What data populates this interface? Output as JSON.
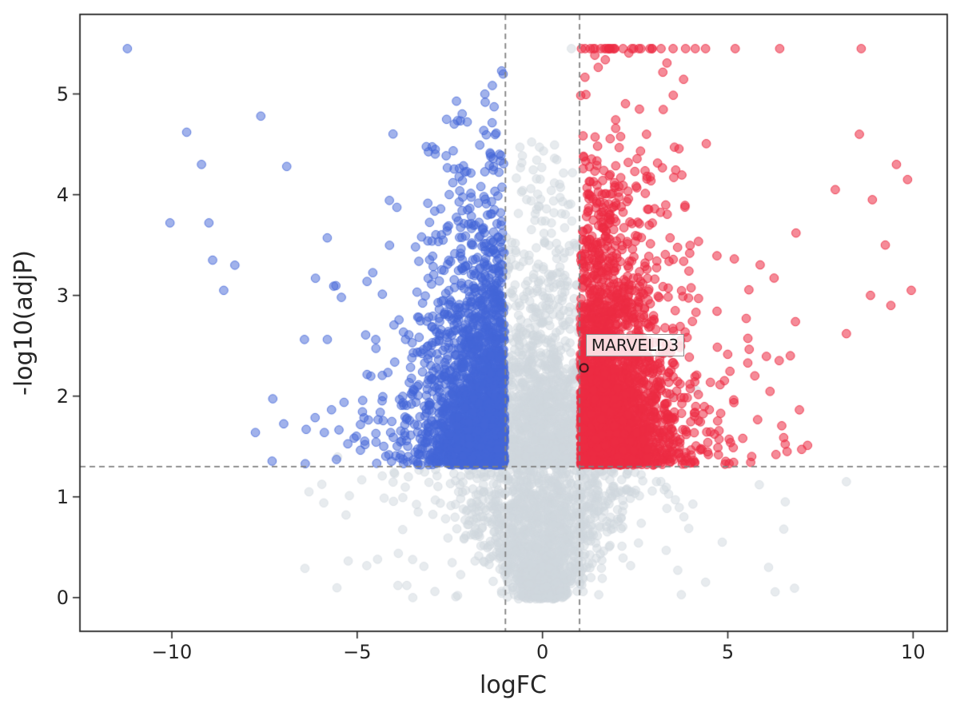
{
  "chart_data": {
    "type": "scatter",
    "variant": "volcano-plot",
    "title": "",
    "xlabel": "logFC",
    "ylabel": "-log10(adjP)",
    "xlim": [
      -12.48,
      10.92
    ],
    "ylim": [
      -0.335,
      5.79
    ],
    "xticks": [
      -10,
      -5,
      0,
      5,
      10
    ],
    "yticks": [
      0,
      1,
      2,
      3,
      4,
      5
    ],
    "grid": false,
    "background": "#ffffff",
    "frame_color": "#262626",
    "text_color": "#262626",
    "dash_color": "#808080",
    "marker_radius": 5.3,
    "y_cap": 5.45,
    "threshold_lines": {
      "x_lines": [
        -1,
        1
      ],
      "y_line": 1.301
    },
    "annotation": {
      "label": "MARVELD3",
      "point": [
        1.12,
        2.28
      ],
      "label_pos": [
        1.17,
        2.62
      ],
      "marker": "open-circle",
      "marker_color": "#111111"
    },
    "seed": 1337,
    "series": [
      {
        "name": "not-significant-band",
        "kind": "band",
        "color": "#d0d7dd",
        "count": 1200,
        "fill_alpha": 0.5,
        "edge_alpha": 0.6,
        "y_mean": 0.82,
        "y_max": 4.6,
        "capped_x": [
          0.78
        ],
        "outliers": [
          [
            6.55,
            0.95
          ],
          [
            5.85,
            1.12
          ],
          [
            4.85,
            0.55
          ],
          [
            -5.3,
            0.82
          ],
          [
            -6.3,
            1.05
          ],
          [
            -4.45,
            0.38
          ],
          [
            6.1,
            0.3
          ],
          [
            -3.9,
            0.12
          ],
          [
            8.2,
            1.15
          ]
        ]
      },
      {
        "name": "not-significant-low",
        "kind": "low",
        "color": "#d0d7dd",
        "count": 1600,
        "fill_alpha": 0.5,
        "edge_alpha": 0.6,
        "sigma0": 0.3,
        "sigma_slope": 1.0,
        "wide_p": 0.06,
        "wide_sigma": 2.6
      },
      {
        "name": "not-significant-above-line",
        "kind": "above",
        "color": "#d0d7dd",
        "count": 22,
        "fill_alpha": 0.5,
        "edge_alpha": 0.6
      },
      {
        "name": "downregulated",
        "kind": "signif",
        "side": -1,
        "color": "#4466d8",
        "count": 2400,
        "fill_alpha": 0.5,
        "edge_alpha": 0.8,
        "mix_p": 0.12,
        "s1": 0.95,
        "s2": 2.2,
        "off2": 0.2,
        "xmin": -11.8,
        "y_mean": 0.74,
        "capped_x": [],
        "outliers": [
          [
            -11.2,
            5.45
          ],
          [
            -10.05,
            3.72
          ],
          [
            -9.6,
            4.62
          ],
          [
            -9.2,
            4.3
          ],
          [
            -8.9,
            3.35
          ],
          [
            -8.6,
            3.05
          ],
          [
            -7.6,
            4.78
          ],
          [
            -6.9,
            4.28
          ],
          [
            -8.3,
            3.3
          ],
          [
            -9.0,
            3.72
          ]
        ]
      },
      {
        "name": "upregulated",
        "kind": "signif",
        "side": 1,
        "color": "#ec2b43",
        "count": 3000,
        "fill_alpha": 0.55,
        "edge_alpha": 0.85,
        "mix_p": 0.15,
        "s1": 1.05,
        "s2": 2.0,
        "off2": 0.25,
        "xmax": 9.95,
        "y_mean": 0.8,
        "capped_x": [
          1.15,
          1.9,
          2.6,
          3.2,
          4.4,
          5.2,
          6.4,
          8.6
        ],
        "outliers": [
          [
            9.85,
            4.15
          ],
          [
            9.55,
            4.3
          ],
          [
            9.25,
            3.5
          ],
          [
            8.85,
            3.0
          ],
          [
            8.55,
            4.6
          ],
          [
            9.95,
            3.05
          ],
          [
            8.2,
            2.62
          ],
          [
            7.9,
            4.05
          ],
          [
            6.6,
            1.45
          ],
          [
            6.3,
            1.42
          ],
          [
            9.4,
            2.9
          ],
          [
            8.9,
            3.95
          ]
        ]
      }
    ]
  }
}
